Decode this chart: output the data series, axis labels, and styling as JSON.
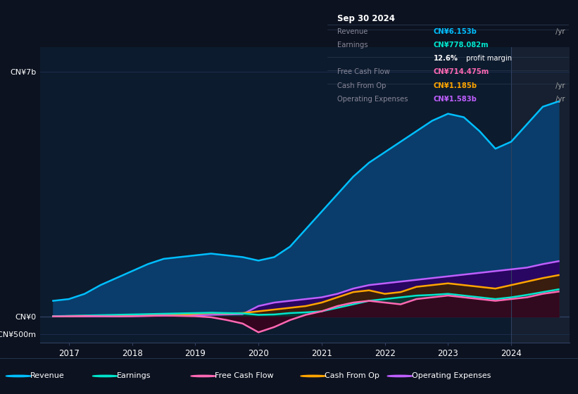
{
  "bg_color": "#0c1220",
  "plot_bg_color": "#0d1b2e",
  "grid_color": "#1e3050",
  "title_date": "Sep 30 2024",
  "ytick_labels": [
    "CN¥7b",
    "CN¥0",
    "-CN¥500m"
  ],
  "ytick_values": [
    7000000000,
    0,
    -500000000
  ],
  "ylim": [
    -750000000,
    7700000000
  ],
  "xlim_min": 2016.55,
  "xlim_max": 2024.92,
  "shaded_x_start": 2024.0,
  "shaded_color": "#162030",
  "revenue": {
    "color": "#00bfff",
    "fill_color": "#0a3d6b",
    "x": [
      2016.75,
      2017.0,
      2017.25,
      2017.5,
      2017.75,
      2018.0,
      2018.25,
      2018.5,
      2018.75,
      2019.0,
      2019.25,
      2019.5,
      2019.75,
      2020.0,
      2020.25,
      2020.5,
      2020.75,
      2021.0,
      2021.25,
      2021.5,
      2021.75,
      2022.0,
      2022.25,
      2022.5,
      2022.75,
      2023.0,
      2023.25,
      2023.5,
      2023.75,
      2024.0,
      2024.25,
      2024.5,
      2024.75
    ],
    "y": [
      450000000,
      500000000,
      650000000,
      900000000,
      1100000000,
      1300000000,
      1500000000,
      1650000000,
      1700000000,
      1750000000,
      1800000000,
      1750000000,
      1700000000,
      1600000000,
      1700000000,
      2000000000,
      2500000000,
      3000000000,
      3500000000,
      4000000000,
      4400000000,
      4700000000,
      5000000000,
      5300000000,
      5600000000,
      5800000000,
      5700000000,
      5300000000,
      4800000000,
      5000000000,
      5500000000,
      6000000000,
      6153000000
    ]
  },
  "operating_expenses": {
    "color": "#bf5fff",
    "fill_color": "#2d0060",
    "x": [
      2016.75,
      2017.0,
      2017.25,
      2017.5,
      2017.75,
      2018.0,
      2018.25,
      2018.5,
      2018.75,
      2019.0,
      2019.25,
      2019.5,
      2019.75,
      2020.0,
      2020.25,
      2020.5,
      2020.75,
      2021.0,
      2021.25,
      2021.5,
      2021.75,
      2022.0,
      2022.25,
      2022.5,
      2022.75,
      2023.0,
      2023.25,
      2023.5,
      2023.75,
      2024.0,
      2024.25,
      2024.5,
      2024.75
    ],
    "y": [
      5000000,
      5000000,
      5000000,
      8000000,
      10000000,
      15000000,
      20000000,
      25000000,
      30000000,
      40000000,
      50000000,
      60000000,
      70000000,
      300000000,
      400000000,
      450000000,
      500000000,
      550000000,
      650000000,
      800000000,
      900000000,
      950000000,
      1000000000,
      1050000000,
      1100000000,
      1150000000,
      1200000000,
      1250000000,
      1300000000,
      1350000000,
      1400000000,
      1500000000,
      1583000000
    ]
  },
  "cash_from_op": {
    "color": "#ffa500",
    "fill_color": "#3d2200",
    "x": [
      2016.75,
      2017.0,
      2017.25,
      2017.5,
      2017.75,
      2018.0,
      2018.25,
      2018.5,
      2018.75,
      2019.0,
      2019.25,
      2019.5,
      2019.75,
      2020.0,
      2020.25,
      2020.5,
      2020.75,
      2021.0,
      2021.25,
      2021.5,
      2021.75,
      2022.0,
      2022.25,
      2022.5,
      2022.75,
      2023.0,
      2023.25,
      2023.5,
      2023.75,
      2024.0,
      2024.25,
      2024.5,
      2024.75
    ],
    "y": [
      10000000,
      15000000,
      20000000,
      25000000,
      30000000,
      40000000,
      50000000,
      60000000,
      50000000,
      80000000,
      100000000,
      90000000,
      100000000,
      150000000,
      200000000,
      250000000,
      300000000,
      400000000,
      550000000,
      700000000,
      750000000,
      650000000,
      700000000,
      850000000,
      900000000,
      950000000,
      900000000,
      850000000,
      800000000,
      900000000,
      1000000000,
      1100000000,
      1185000000
    ]
  },
  "earnings": {
    "color": "#00e5cc",
    "fill_color": "#003d3d",
    "x": [
      2016.75,
      2017.0,
      2017.25,
      2017.5,
      2017.75,
      2018.0,
      2018.25,
      2018.5,
      2018.75,
      2019.0,
      2019.25,
      2019.5,
      2019.75,
      2020.0,
      2020.25,
      2020.5,
      2020.75,
      2021.0,
      2021.25,
      2021.5,
      2021.75,
      2022.0,
      2022.25,
      2022.5,
      2022.75,
      2023.0,
      2023.25,
      2023.5,
      2023.75,
      2024.0,
      2024.25,
      2024.5,
      2024.75
    ],
    "y": [
      10000000,
      20000000,
      30000000,
      40000000,
      50000000,
      60000000,
      70000000,
      80000000,
      90000000,
      100000000,
      110000000,
      100000000,
      90000000,
      50000000,
      60000000,
      100000000,
      120000000,
      150000000,
      250000000,
      350000000,
      450000000,
      500000000,
      550000000,
      600000000,
      620000000,
      650000000,
      600000000,
      550000000,
      500000000,
      550000000,
      620000000,
      700000000,
      778000000
    ]
  },
  "free_cash_flow": {
    "color": "#ff69b4",
    "fill_color": "#3d001a",
    "x": [
      2016.75,
      2017.0,
      2017.25,
      2017.5,
      2017.75,
      2018.0,
      2018.25,
      2018.5,
      2018.75,
      2019.0,
      2019.25,
      2019.5,
      2019.75,
      2020.0,
      2020.25,
      2020.5,
      2020.75,
      2021.0,
      2021.25,
      2021.5,
      2021.75,
      2022.0,
      2022.25,
      2022.5,
      2022.75,
      2023.0,
      2023.25,
      2023.5,
      2023.75,
      2024.0,
      2024.25,
      2024.5,
      2024.75
    ],
    "y": [
      5000000,
      10000000,
      15000000,
      10000000,
      5000000,
      10000000,
      20000000,
      30000000,
      20000000,
      10000000,
      -20000000,
      -100000000,
      -200000000,
      -450000000,
      -300000000,
      -100000000,
      50000000,
      150000000,
      300000000,
      400000000,
      450000000,
      400000000,
      350000000,
      500000000,
      550000000,
      600000000,
      550000000,
      500000000,
      450000000,
      500000000,
      550000000,
      650000000,
      714000000
    ]
  },
  "legend_items": [
    {
      "label": "Revenue",
      "color": "#00bfff"
    },
    {
      "label": "Earnings",
      "color": "#00e5cc"
    },
    {
      "label": "Free Cash Flow",
      "color": "#ff69b4"
    },
    {
      "label": "Cash From Op",
      "color": "#ffa500"
    },
    {
      "label": "Operating Expenses",
      "color": "#bf5fff"
    }
  ],
  "info_rows": [
    {
      "label": "Revenue",
      "value": "CN¥6.153b",
      "unit": "/yr",
      "value_color": "#00bfff",
      "sub": null
    },
    {
      "label": "Earnings",
      "value": "CN¥778.082m",
      "unit": "/yr",
      "value_color": "#00e5cc",
      "sub": "12.6% profit margin"
    },
    {
      "label": "Free Cash Flow",
      "value": "CN¥714.475m",
      "unit": "/yr",
      "value_color": "#ff69b4",
      "sub": null
    },
    {
      "label": "Cash From Op",
      "value": "CN¥1.185b",
      "unit": "/yr",
      "value_color": "#ffa500",
      "sub": null
    },
    {
      "label": "Operating Expenses",
      "value": "CN¥1.583b",
      "unit": "/yr",
      "value_color": "#bf5fff",
      "sub": null
    }
  ]
}
